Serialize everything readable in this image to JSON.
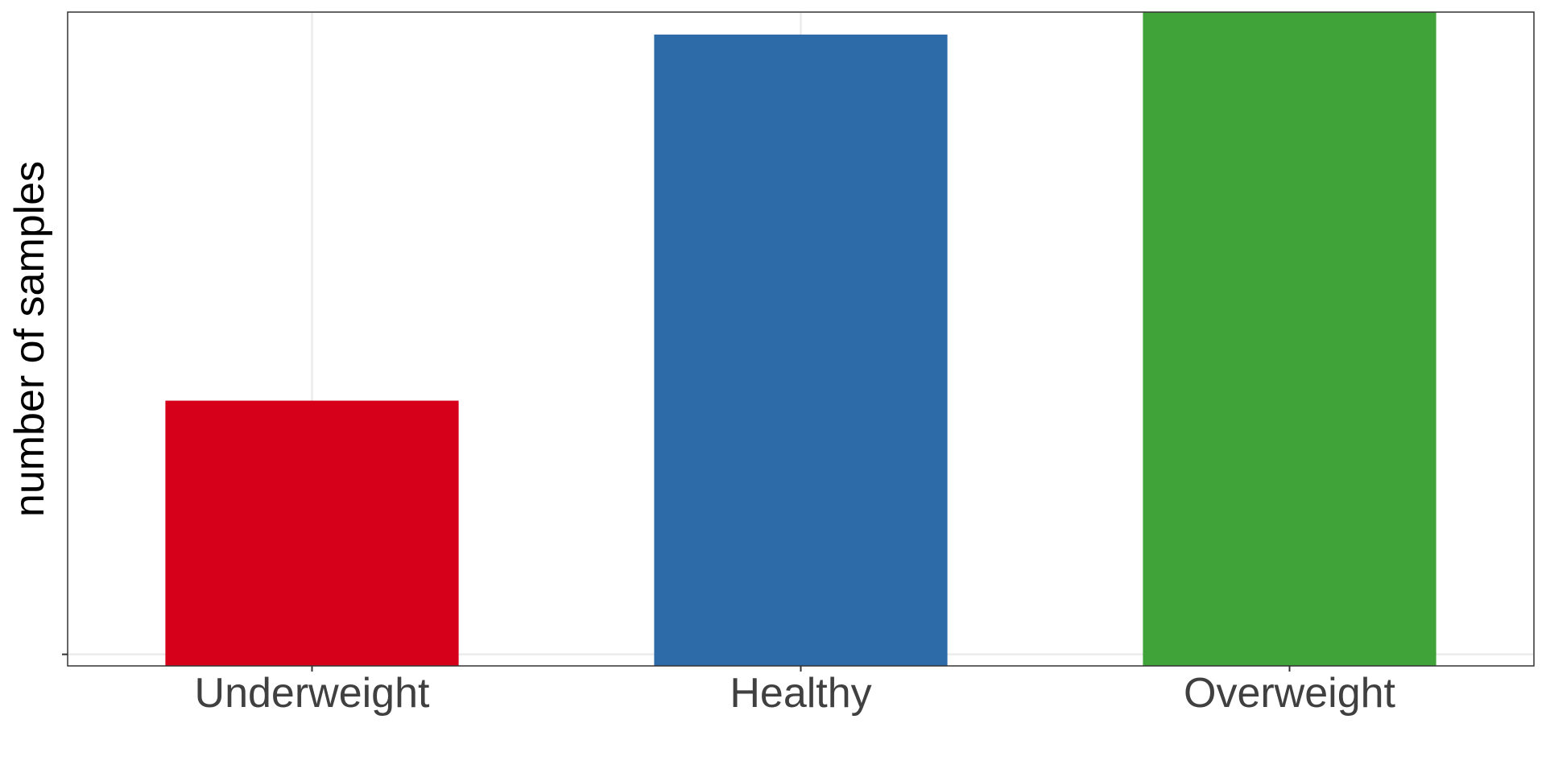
{
  "chart_data": {
    "type": "bar",
    "title": "",
    "xlabel": "",
    "ylabel": "number of samples",
    "categories": [
      "Underweight",
      "Healthy",
      "Overweight"
    ],
    "values": [
      0.395,
      0.965,
      1.0
    ],
    "colors": [
      "#d7001a",
      "#2d6aa8",
      "#40a339"
    ],
    "ylim": [
      -0.018,
      1.0
    ],
    "grid": true,
    "legend": "none",
    "colors_meta": {
      "grid": "#ebebeb",
      "panel_border": "#333333",
      "tick": "#333333"
    }
  }
}
